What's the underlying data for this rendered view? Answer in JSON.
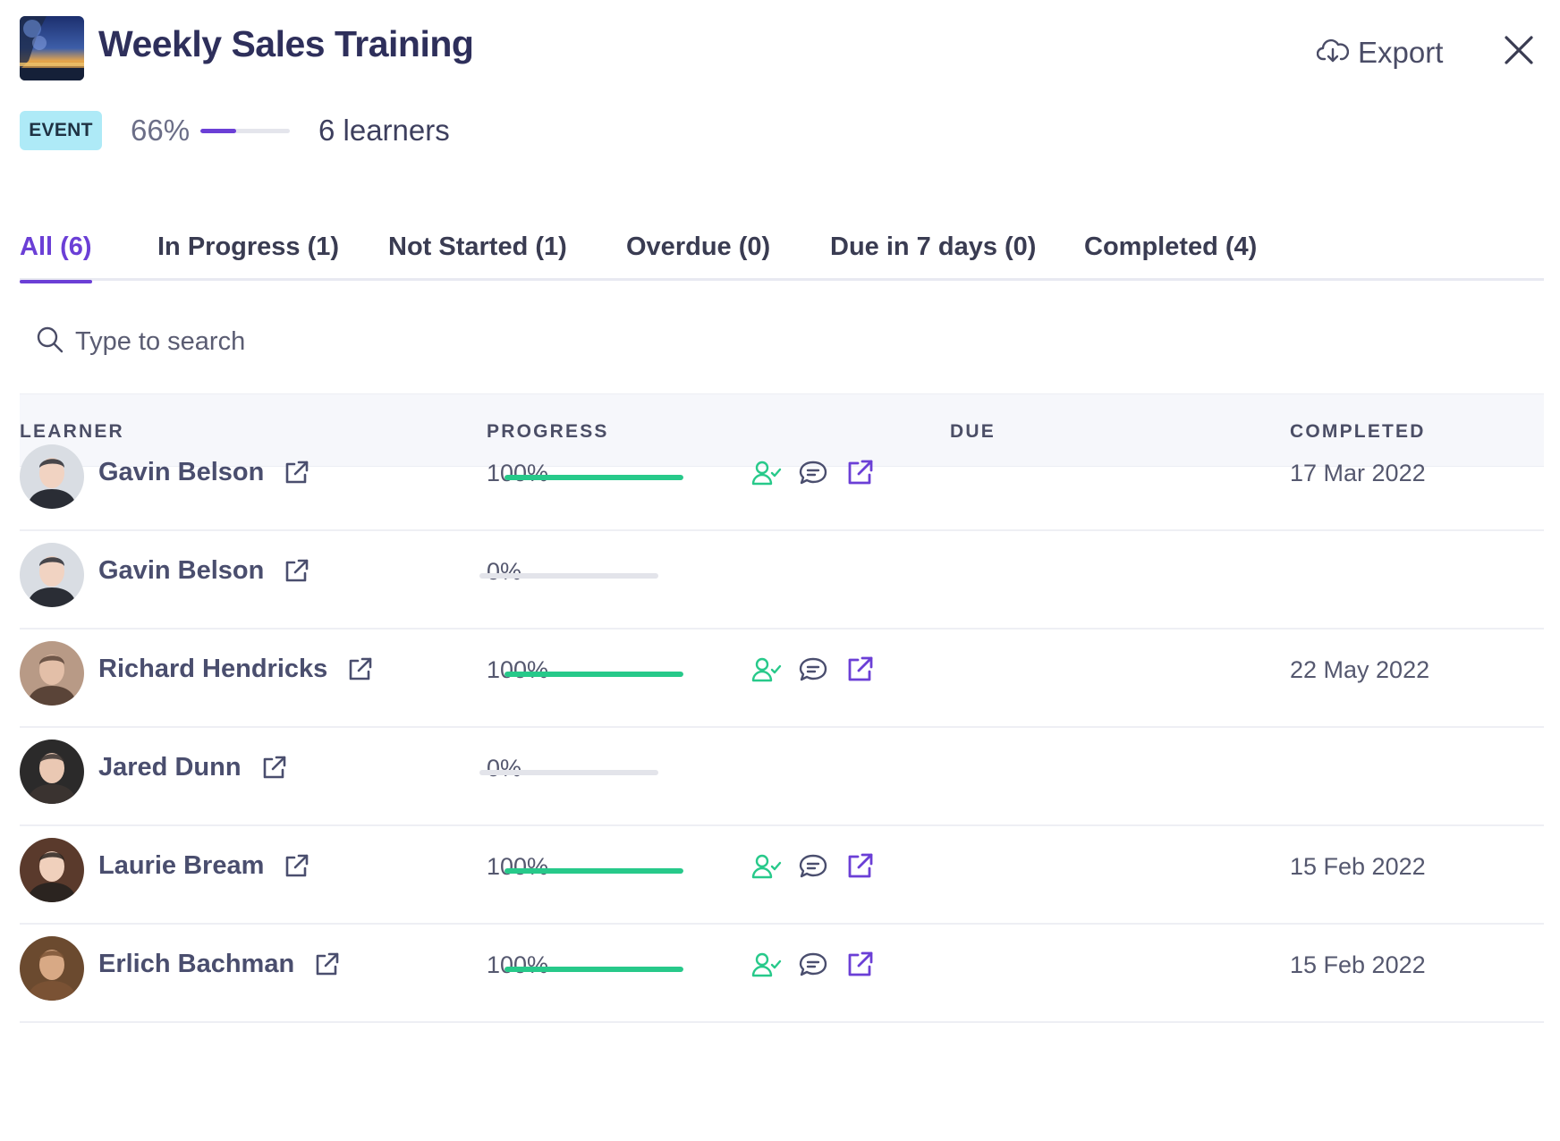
{
  "header": {
    "title": "Weekly Sales Training",
    "export_label": "Export"
  },
  "meta": {
    "badge": "EVENT",
    "progress_text": "66%",
    "progress_fraction": 0.66,
    "learners_text": "6 learners",
    "accent_color": "#6b3fd6"
  },
  "tabs": [
    {
      "label": "All (6)",
      "active": true
    },
    {
      "label": "In Progress (1)",
      "active": false
    },
    {
      "label": "Not Started (1)",
      "active": false
    },
    {
      "label": "Overdue (0)",
      "active": false
    },
    {
      "label": "Due in 7 days (0)",
      "active": false
    },
    {
      "label": "Completed (4)",
      "active": false
    }
  ],
  "search": {
    "placeholder": "Type to search"
  },
  "table": {
    "columns": [
      "LEARNER",
      "PROGRESS",
      "DUE",
      "COMPLETED"
    ],
    "rows": [
      {
        "name": "Gavin Belson",
        "progress_text": "100%",
        "progress_fraction": 1.0,
        "due": "",
        "completed": "17 Mar 2022",
        "has_actions": true
      },
      {
        "name": "Gavin Belson",
        "progress_text": "0%",
        "progress_fraction": 0.0,
        "due": "",
        "completed": "",
        "has_actions": false
      },
      {
        "name": "Richard Hendricks",
        "progress_text": "100%",
        "progress_fraction": 1.0,
        "due": "",
        "completed": "22 May 2022",
        "has_actions": true
      },
      {
        "name": "Jared Dunn",
        "progress_text": "0%",
        "progress_fraction": 0.0,
        "due": "",
        "completed": "",
        "has_actions": false
      },
      {
        "name": "Laurie Bream",
        "progress_text": "100%",
        "progress_fraction": 1.0,
        "due": "",
        "completed": "15 Feb 2022",
        "has_actions": true
      },
      {
        "name": "Erlich Bachman",
        "progress_text": "100%",
        "progress_fraction": 1.0,
        "due": "",
        "completed": "15 Feb 2022",
        "has_actions": true
      }
    ]
  },
  "colors": {
    "accent": "#6b3fd6",
    "success": "#27c98a",
    "badge_bg": "#aeeaf7"
  }
}
